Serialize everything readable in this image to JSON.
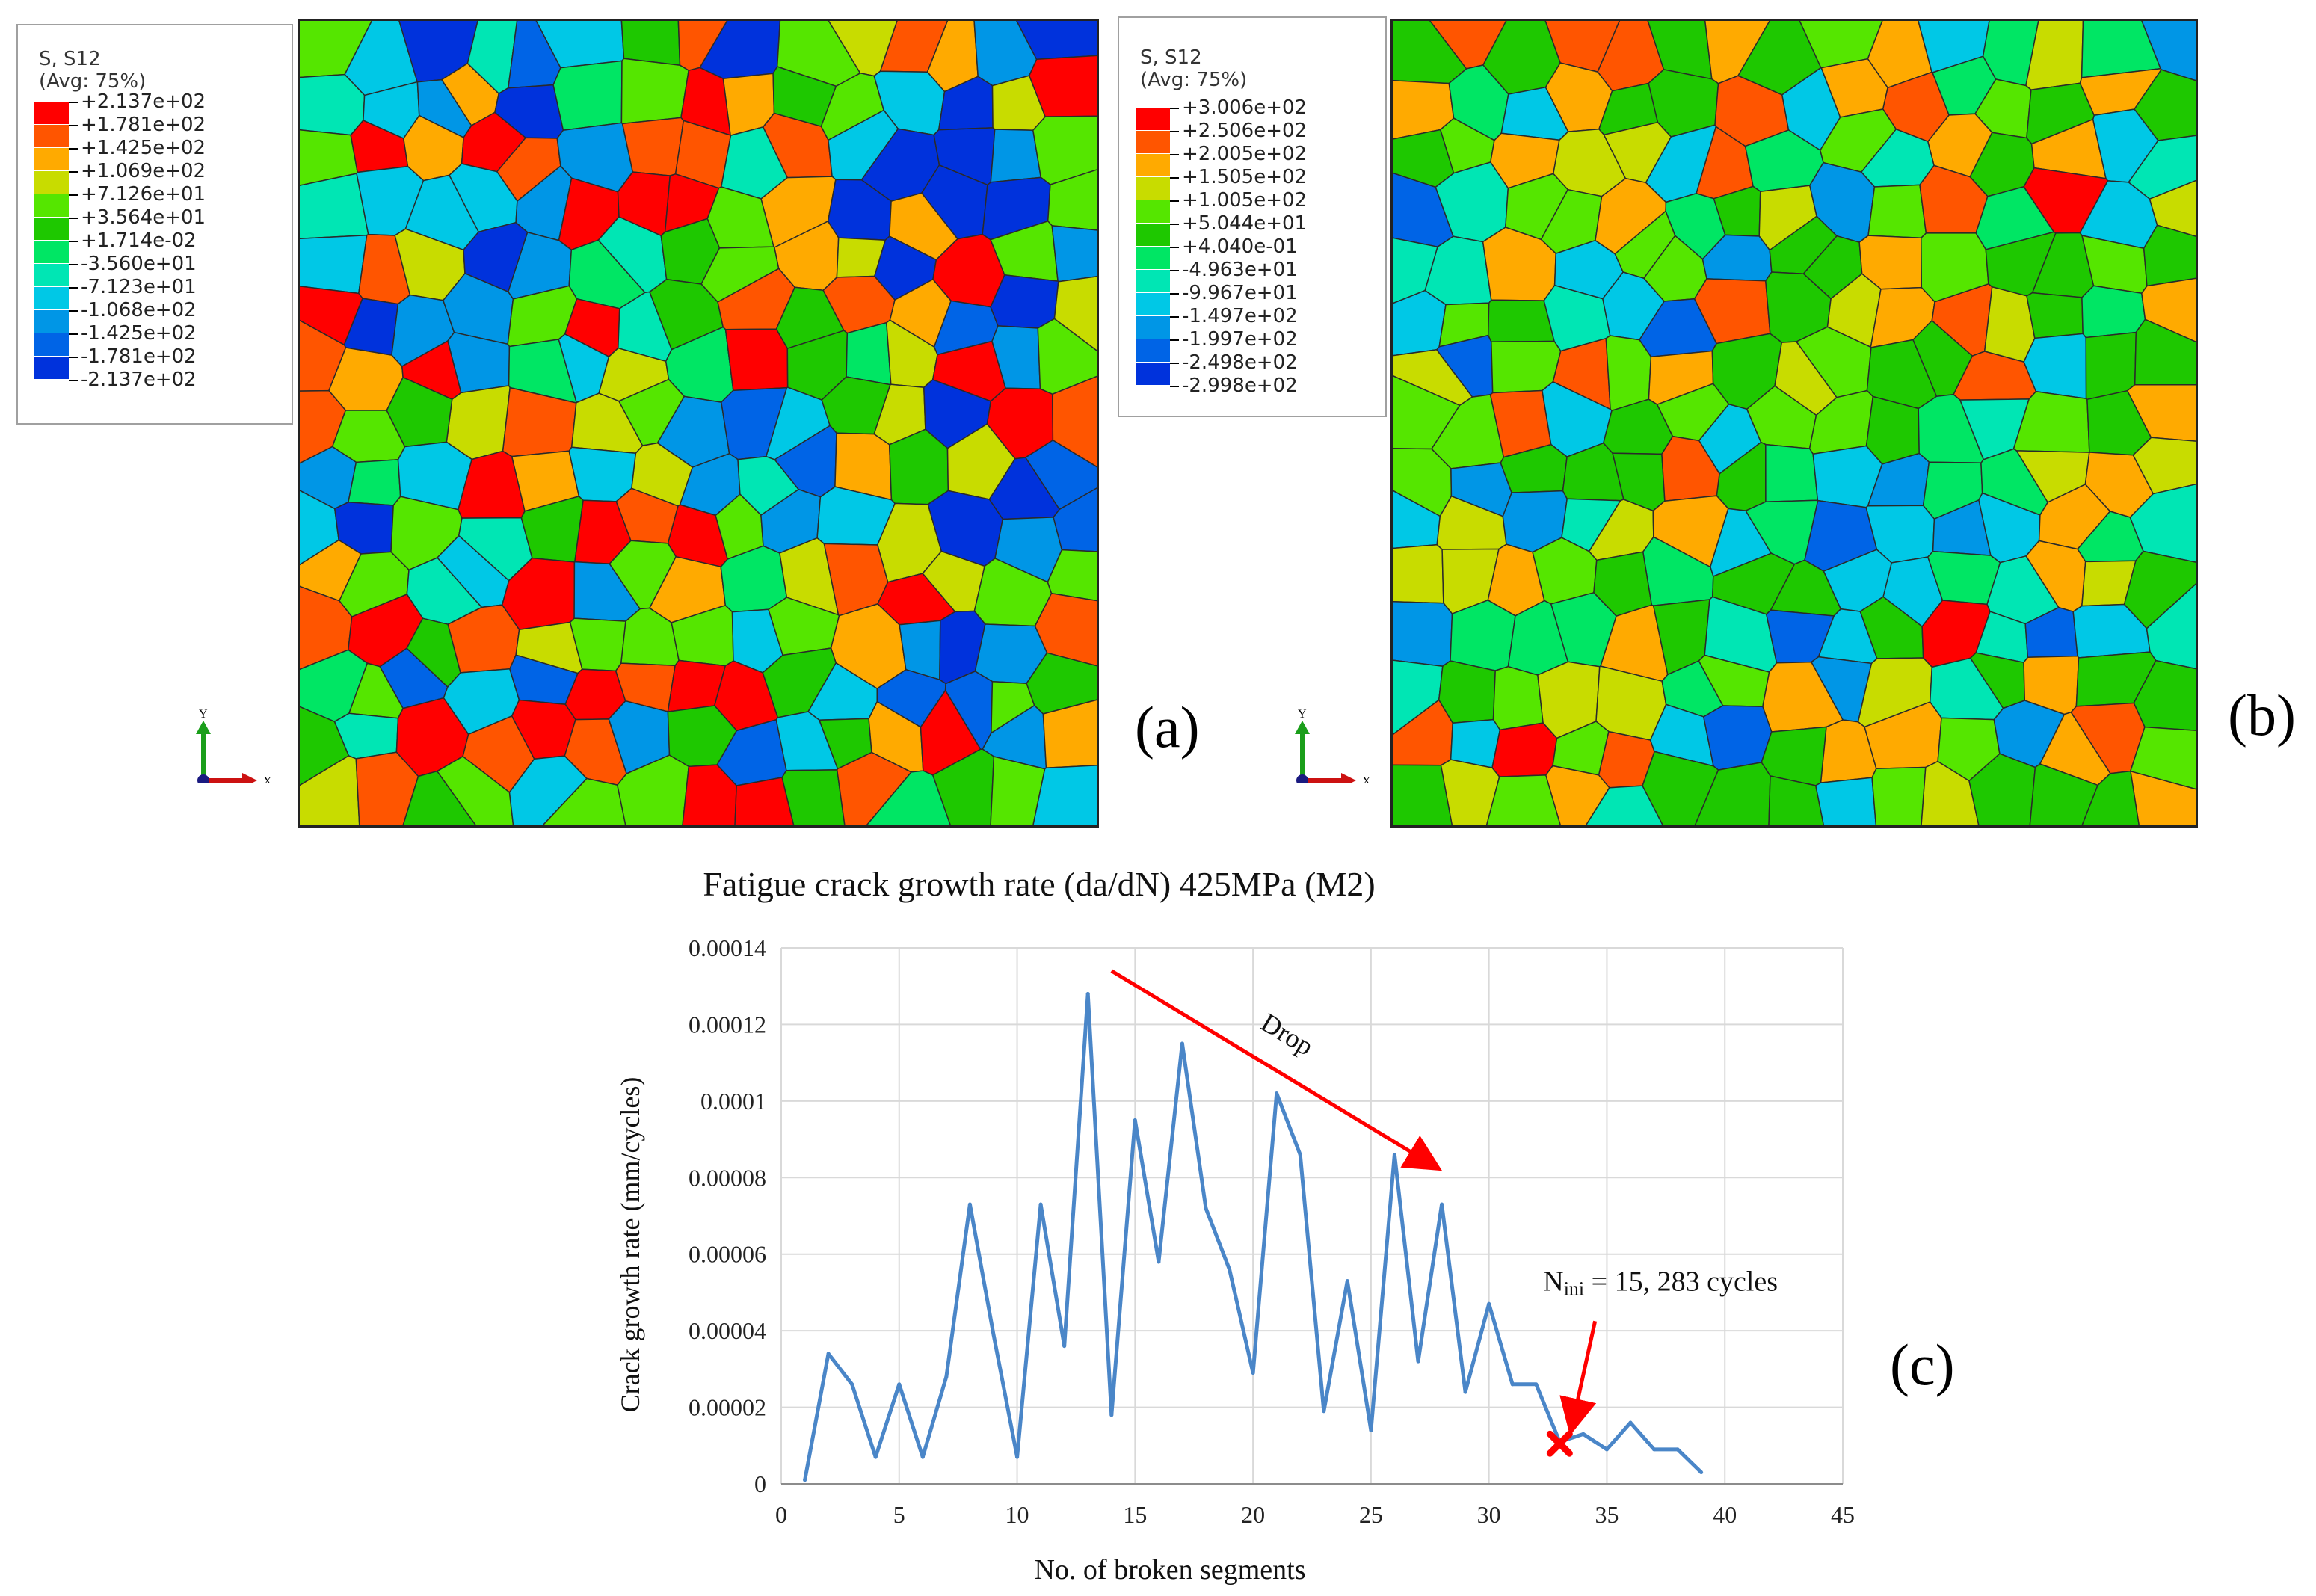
{
  "panels": {
    "a": {
      "letter": "(a)",
      "legend": {
        "title_line1": "S, S12",
        "title_line2": "(Avg: 75%)",
        "labels": [
          "+2.137e+02",
          "+1.781e+02",
          "+1.425e+02",
          "+1.069e+02",
          "+7.126e+01",
          "+3.564e+01",
          "+1.714e-02",
          "-3.560e+01",
          "-7.123e+01",
          "-1.068e+02",
          "-1.425e+02",
          "-1.781e+02",
          "-2.137e+02"
        ],
        "colors": [
          "#ff0000",
          "#ff5500",
          "#ffaa00",
          "#c8dc00",
          "#55e600",
          "#1ec800",
          "#00e664",
          "#00e6b4",
          "#00c8e6",
          "#0096e6",
          "#0064e6",
          "#0032dc"
        ]
      },
      "triad": {
        "y": "Y",
        "x": "X"
      }
    },
    "b": {
      "letter": "(b)",
      "legend": {
        "title_line1": "S, S12",
        "title_line2": "(Avg: 75%)",
        "labels": [
          "+3.006e+02",
          "+2.506e+02",
          "+2.005e+02",
          "+1.505e+02",
          "+1.005e+02",
          "+5.044e+01",
          "+4.040e-01",
          "-4.963e+01",
          "-9.967e+01",
          "-1.497e+02",
          "-1.997e+02",
          "-2.498e+02",
          "-2.998e+02"
        ],
        "colors": [
          "#ff0000",
          "#ff5500",
          "#ffaa00",
          "#c8dc00",
          "#55e600",
          "#1ec800",
          "#00e664",
          "#00e6b4",
          "#00c8e6",
          "#0096e6",
          "#0064e6",
          "#0032dc"
        ]
      },
      "triad": {
        "y": "Y",
        "x": "X"
      }
    },
    "c": {
      "letter": "(c)"
    }
  },
  "chart_data": {
    "type": "line",
    "title": "Fatigue crack growth rate (da/dN) 425MPa (M2)",
    "xlabel": "No. of broken segments",
    "ylabel": "Crack growth rate (mm/cycles)",
    "xlim": [
      0,
      45
    ],
    "ylim": [
      0,
      0.00014
    ],
    "x_ticks": [
      "0",
      "5",
      "10",
      "15",
      "20",
      "25",
      "30",
      "35",
      "40",
      "45"
    ],
    "y_ticks": [
      "0",
      "0.00002",
      "0.00004",
      "0.00006",
      "0.00008",
      "0.0001",
      "0.00012",
      "0.00014"
    ],
    "grid": true,
    "series_color": "#4a86c8",
    "series": [
      {
        "x": [
          1,
          2,
          3,
          4,
          5,
          6,
          7,
          8,
          9,
          10,
          11,
          12,
          13,
          14,
          15,
          16,
          17,
          18,
          19,
          20,
          21,
          22,
          23,
          24,
          25,
          26,
          27,
          28,
          29,
          30,
          31,
          32,
          33,
          34,
          35,
          36,
          37,
          38,
          39
        ],
        "values": [
          1e-06,
          3.4e-05,
          2.6e-05,
          7e-06,
          2.6e-05,
          7e-06,
          2.8e-05,
          7.3e-05,
          3.9e-05,
          7e-06,
          7.3e-05,
          3.6e-05,
          0.000128,
          1.8e-05,
          9.5e-05,
          5.8e-05,
          0.000115,
          7.2e-05,
          5.6e-05,
          2.9e-05,
          0.000102,
          8.6e-05,
          1.9e-05,
          5.3e-05,
          1.4e-05,
          8.6e-05,
          3.2e-05,
          7.3e-05,
          2.4e-05,
          4.7e-05,
          2.6e-05,
          2.6e-05,
          1.1e-05,
          1.3e-05,
          9e-06,
          1.6e-05,
          9e-06,
          9e-06,
          3e-06
        ]
      }
    ],
    "annotations": {
      "drop_label": "Drop",
      "drop_arrow": {
        "from": [
          14,
          0.000134
        ],
        "to": [
          28,
          8.2e-05
        ]
      },
      "nini_prefix": "N",
      "nini_sub": "ini",
      "nini_suffix": " = 15, 283 cycles",
      "nini_arrow": {
        "from": [
          34.5,
          4.25e-05
        ],
        "to": [
          33.5,
          1.45e-05
        ]
      },
      "marker": {
        "x": 33,
        "y": 1.05e-05
      },
      "accent_color": "#ff0000"
    }
  }
}
